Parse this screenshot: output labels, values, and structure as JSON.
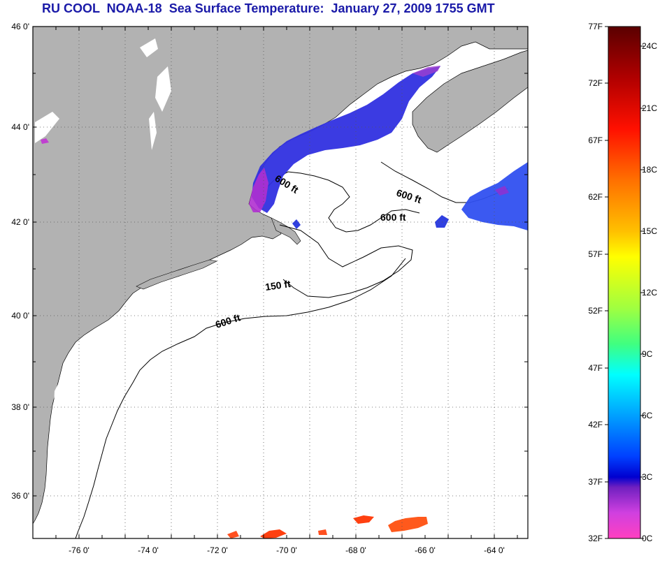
{
  "title": "RU COOL  NOAA-18  Sea Surface Temperature:  January 27, 2009 1755 GMT",
  "latitude_labels": [
    "46 0'",
    "44 0'",
    "42 0'",
    "40 0'",
    "38 0'",
    "36 0'"
  ],
  "longitude_labels": [
    "-76 0'",
    "-74 0'",
    "-72 0'",
    "-70 0'",
    "-68 0'",
    "-66 0'",
    "-64 0'"
  ],
  "contour_labels": [
    "600 ft",
    "600 ft",
    "600 ft",
    "150 ft",
    "600 ft"
  ],
  "colorbar": {
    "fahrenheit_labels": [
      "77F",
      "72F",
      "67F",
      "62F",
      "57F",
      "52F",
      "47F",
      "42F",
      "37F",
      "32F"
    ],
    "celsius_labels": [
      "24C",
      "21C",
      "18C",
      "15C",
      "12C",
      "9C",
      "6C",
      "3C",
      "0C"
    ]
  },
  "colors": {
    "title": "#1a1aa8",
    "land": "#b2b2b2",
    "ocean": "#ffffff"
  }
}
